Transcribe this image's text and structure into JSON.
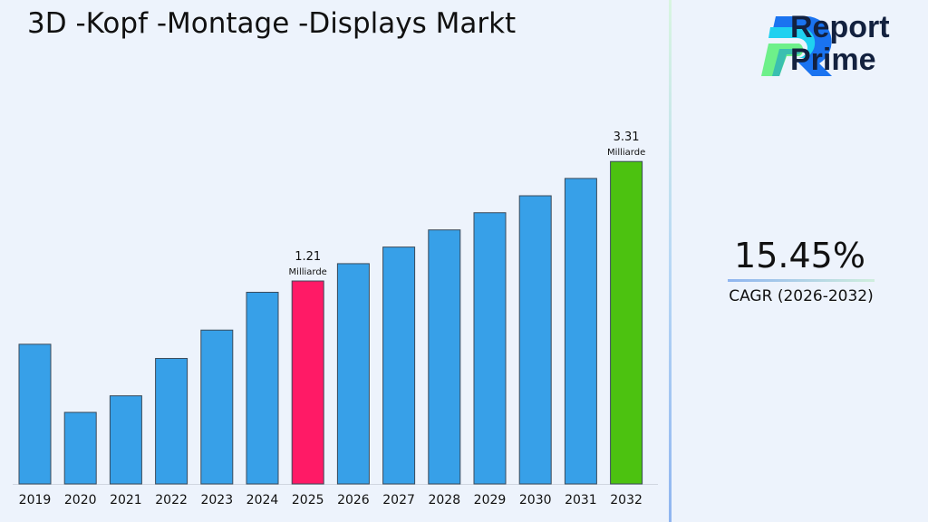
{
  "title": "3D -Kopf -Montage -Displays Markt",
  "brand": {
    "line1": "Report",
    "line2": "Prime"
  },
  "cagr": {
    "value": "15.45%",
    "label": "CAGR (2026-2032)"
  },
  "chart_data": {
    "type": "bar",
    "title": "3D -Kopf -Montage -Displays Markt",
    "categories": [
      "2019",
      "2020",
      "2021",
      "2022",
      "2023",
      "2024",
      "2025",
      "2026",
      "2027",
      "2028",
      "2029",
      "2030",
      "2031",
      "2032"
    ],
    "values": [
      0.71,
      0.4,
      0.46,
      0.63,
      0.8,
      1.1,
      1.21,
      1.4,
      1.61,
      1.86,
      2.15,
      2.48,
      2.87,
      3.31
    ],
    "unit": "Milliarde",
    "yscale": "log",
    "grid": false,
    "colors": {
      "default": "#37a0e8",
      "highlight_2025": "#ff1a66",
      "highlight_2032": "#4cc210"
    },
    "annotations": [
      {
        "category": "2025",
        "value": "1.21",
        "unit": "Milliarde"
      },
      {
        "category": "2032",
        "value": "3.31",
        "unit": "Milliarde"
      }
    ]
  }
}
